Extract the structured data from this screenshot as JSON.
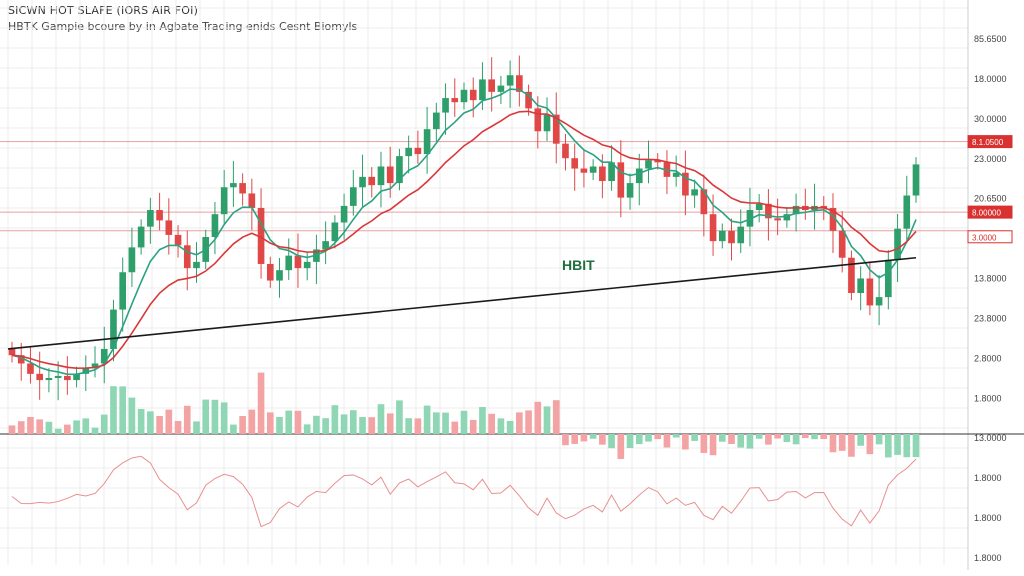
{
  "chart_data": {
    "type": "candlestick",
    "title": "SICWN HOT SLAFE (IORS AIR FOI)",
    "subtitle": "HBTK Gampie bcoure by in Agbate Trading enids Cesnt Biomyls",
    "annotation": "HBIT",
    "y_axis_labels": [
      "85.6500",
      "18.0000",
      "30.0000",
      "23.0000",
      "20.6500",
      "13.8000",
      "13.8000",
      "23.8000",
      "2.8000",
      "1.8000",
      "13.0000",
      "1.8000",
      "1.8000",
      "1.8000"
    ],
    "price_badges": [
      "8.1.0500",
      "8.00000",
      "3.0000"
    ],
    "colors": {
      "up": "#2e9e6a",
      "down": "#e04848",
      "ma_fast": "#2aa383",
      "ma_slow": "#d9383a",
      "trend": "#1a1a1a",
      "volume_up": "#8ed6b4",
      "volume_down": "#f3a3a3",
      "badge": "#d93030"
    },
    "y_range": [
      8,
      27
    ],
    "horizontal_levels": [
      22.1,
      18.7,
      17.8
    ],
    "trendline": {
      "x": [
        0,
        106
      ],
      "y": [
        12.1,
        16.5
      ]
    },
    "candles": {
      "close": [
        11.8,
        11.4,
        10.9,
        10.6,
        10.7,
        10.8,
        10.6,
        10.9,
        11.2,
        11.4,
        12.1,
        14.0,
        15.8,
        17.0,
        18.0,
        18.8,
        18.3,
        17.6,
        17.1,
        16.0,
        16.3,
        17.5,
        18.6,
        19.9,
        20.1,
        19.6,
        18.9,
        16.2,
        15.4,
        15.9,
        16.6,
        16.0,
        16.3,
        16.9,
        17.3,
        18.2,
        19.0,
        19.9,
        20.4,
        20.0,
        20.9,
        20.1,
        21.4,
        21.8,
        21.5,
        22.7,
        23.5,
        24.2,
        24.0,
        24.6,
        24.1,
        25.1,
        24.5,
        24.8,
        25.3,
        24.5,
        23.7,
        22.6,
        23.4,
        22.0,
        21.3,
        20.8,
        20.6,
        20.9,
        20.2,
        21.1,
        19.4,
        20.1,
        20.8,
        21.2,
        21.1,
        20.4,
        20.6,
        19.5,
        19.8,
        18.6,
        17.3,
        17.8,
        17.2,
        18.0,
        18.8,
        19.1,
        18.4,
        18.3,
        18.6,
        19.0,
        18.8,
        19.0,
        18.9,
        17.8,
        16.5,
        14.8,
        15.5,
        14.2,
        14.6,
        16.4,
        17.9,
        19.5,
        21.0
      ]
    }
  }
}
